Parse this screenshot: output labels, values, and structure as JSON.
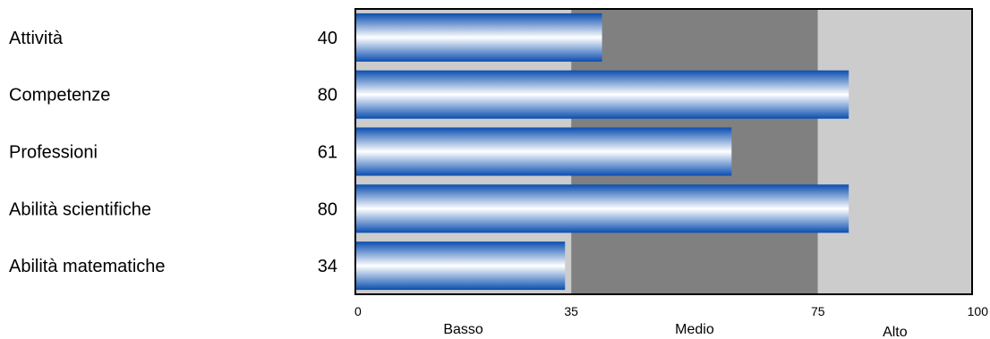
{
  "chart_data": {
    "type": "bar",
    "orientation": "horizontal",
    "categories": [
      "Attività",
      "Competenze",
      "Professioni",
      "Abilità scientifiche",
      "Abilità matematiche"
    ],
    "values": [
      40,
      80,
      61,
      80,
      34
    ],
    "xlim": [
      0,
      100
    ],
    "ticks": [
      0,
      35,
      75,
      100
    ],
    "bands": [
      {
        "label": "Basso",
        "from": 0,
        "to": 35,
        "color": "#cccccc"
      },
      {
        "label": "Medio",
        "from": 35,
        "to": 75,
        "color": "#808080"
      },
      {
        "label": "Alto",
        "from": 75,
        "to": 100,
        "color": "#cccccc"
      }
    ],
    "bar_colors": {
      "edge": "#0a4eb0",
      "center": "#ffffff"
    },
    "grid": false,
    "legend": "none"
  }
}
